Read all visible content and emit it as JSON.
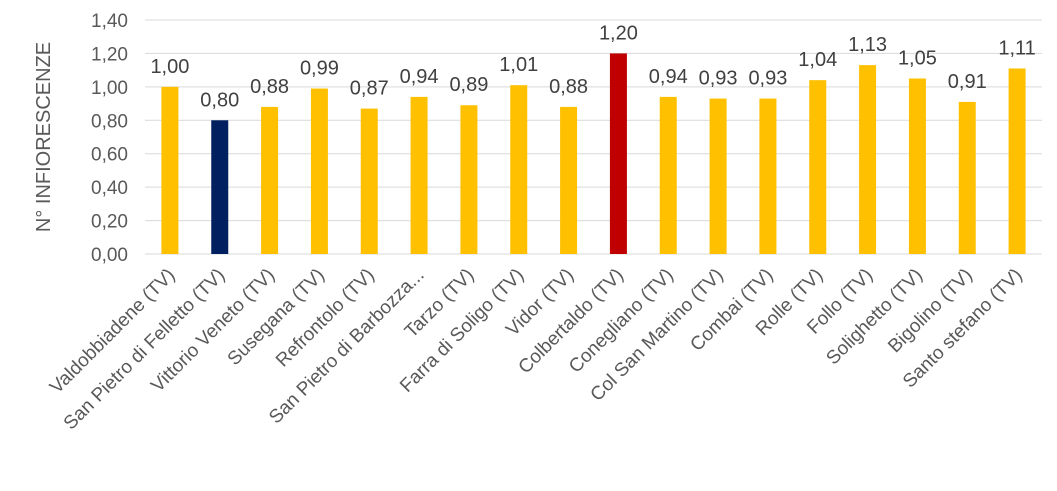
{
  "chart_data": {
    "type": "bar",
    "title": "",
    "xlabel": "",
    "ylabel": "N° INFIORESCENZE",
    "ylim": [
      0,
      1.4
    ],
    "ytick_step": 0.2,
    "yticks": [
      "0,00",
      "0,20",
      "0,40",
      "0,60",
      "0,80",
      "1,00",
      "1,20",
      "1,40"
    ],
    "grid": true,
    "legend": "none",
    "categories": [
      "Valdobbiadene (TV)",
      "San Pietro di Felletto (TV)",
      "Vittorio Veneto (TV)",
      "Susegana (TV)",
      "Refrontolo (TV)",
      "San Pietro di Barbozza...",
      "Tarzo (TV)",
      "Farra di Soligo (TV)",
      "Vidor (TV)",
      "Colbertaldo (TV)",
      "Conegliano (TV)",
      "Col San Martino (TV)",
      "Combai (TV)",
      "Rolle (TV)",
      "Follo (TV)",
      "Solighetto (TV)",
      "Bigolino (TV)",
      "Santo stefano (TV)"
    ],
    "values": [
      1.0,
      0.8,
      0.88,
      0.99,
      0.87,
      0.94,
      0.89,
      1.01,
      0.88,
      1.2,
      0.94,
      0.93,
      0.93,
      1.04,
      1.13,
      1.05,
      0.91,
      1.11
    ],
    "value_labels": [
      "1,00",
      "0,80",
      "0,88",
      "0,99",
      "0,87",
      "0,94",
      "0,89",
      "1,01",
      "0,88",
      "1,20",
      "0,94",
      "0,93",
      "0,93",
      "1,04",
      "1,13",
      "1,05",
      "0,91",
      "1,11"
    ],
    "colors": {
      "default": "#FFC000",
      "highlight_low": "#002060",
      "highlight_high": "#C00000"
    },
    "bar_colors": [
      "default",
      "highlight_low",
      "default",
      "default",
      "default",
      "default",
      "default",
      "default",
      "default",
      "highlight_high",
      "default",
      "default",
      "default",
      "default",
      "default",
      "default",
      "default",
      "default"
    ]
  }
}
